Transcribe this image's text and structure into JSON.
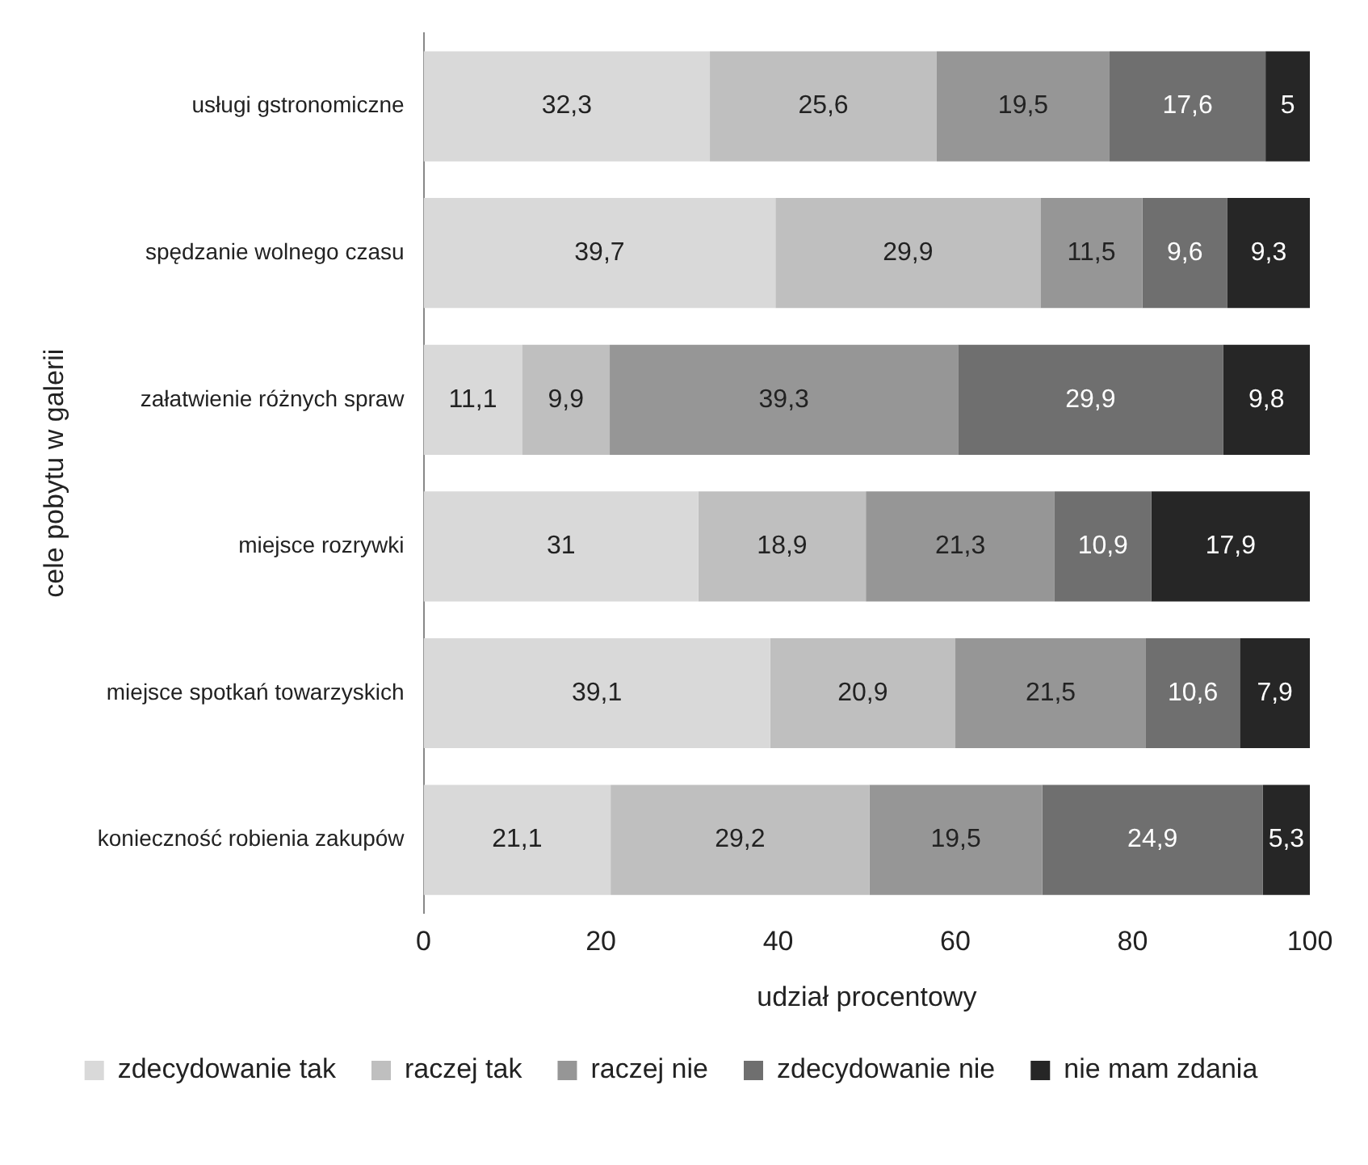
{
  "chart_data": {
    "type": "bar",
    "orientation": "horizontal",
    "stacked": true,
    "categories": [
      "usługi gstronomiczne",
      "spędzanie wolnego czasu",
      "załatwienie różnych spraw",
      "miejsce rozrywki",
      "miejsce spotkań towarzyskich",
      "konieczność robienia zakupów"
    ],
    "series": [
      {
        "name": "zdecydowanie tak",
        "color": "#d9d9d9",
        "values": [
          32.3,
          39.7,
          11.1,
          31,
          39.1,
          21.1
        ],
        "value_labels": [
          "32,3",
          "39,7",
          "11,1",
          "31",
          "39,1",
          "21,1"
        ]
      },
      {
        "name": "raczej tak",
        "color": "#bfbfbf",
        "values": [
          25.6,
          29.9,
          9.9,
          18.9,
          20.9,
          29.2
        ],
        "value_labels": [
          "25,6",
          "29,9",
          "9,9",
          "18,9",
          "20,9",
          "29,2"
        ]
      },
      {
        "name": "raczej nie",
        "color": "#969696",
        "values": [
          19.5,
          11.5,
          39.3,
          21.3,
          21.5,
          19.5
        ],
        "value_labels": [
          "19,5",
          "11,5",
          "39,3",
          "21,3",
          "21,5",
          "19,5"
        ]
      },
      {
        "name": "zdecydowanie nie",
        "color": "#6f6f6f",
        "values": [
          17.6,
          9.6,
          29.9,
          10.9,
          10.6,
          24.9
        ],
        "value_labels": [
          "17,6",
          "9,6",
          "29,9",
          "10,9",
          "10,6",
          "24,9"
        ]
      },
      {
        "name": "nie mam zdania",
        "color": "#262626",
        "values": [
          5,
          9.3,
          9.8,
          17.9,
          7.9,
          5.3
        ],
        "value_labels": [
          "5",
          "9,3",
          "9,8",
          "17,9",
          "7,9",
          "5,3"
        ]
      }
    ],
    "xlim": [
      0,
      100
    ],
    "xticks": [
      0,
      20,
      40,
      60,
      80,
      100
    ],
    "xlabel": "udział procentowy",
    "ylabel": "cele pobytu w galerii",
    "grid": false,
    "legend": "bottom"
  }
}
